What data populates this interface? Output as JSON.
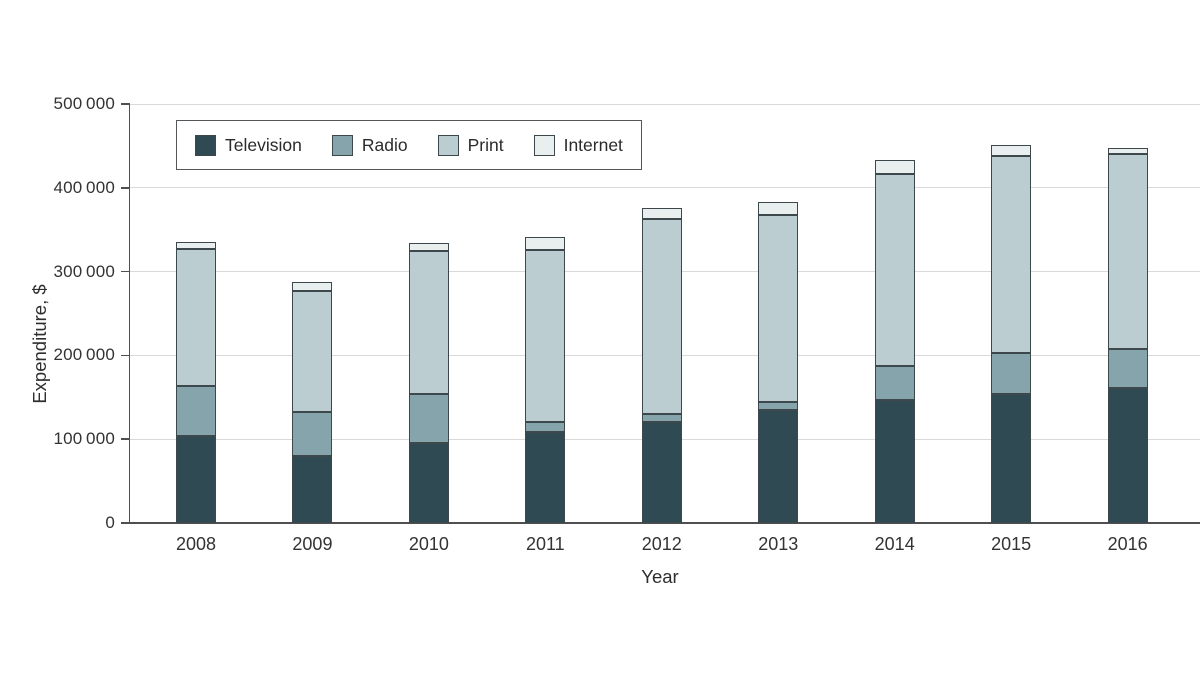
{
  "figure": {
    "background": "#ffffff",
    "text_color": "#333333",
    "axis_color": "#4f4f4f",
    "gridline_color": "#d9d9d9",
    "segment_border_color": "#3d484c",
    "legend_border_color": "#54585a"
  },
  "chart_data": {
    "type": "bar",
    "stacked": true,
    "xlabel": "Year",
    "ylabel": "Expenditure, $",
    "categories": [
      "2008",
      "2009",
      "2010",
      "2011",
      "2012",
      "2013",
      "2014",
      "2015",
      "2016"
    ],
    "series": [
      {
        "name": "Television",
        "color": "#2f4a52",
        "values": [
          104000,
          80000,
          95000,
          109000,
          121000,
          135000,
          147000,
          154000,
          161000
        ]
      },
      {
        "name": "Radio",
        "color": "#85a4ac",
        "values": [
          60000,
          52000,
          59000,
          12000,
          9000,
          9000,
          40000,
          49000,
          47000
        ]
      },
      {
        "name": "Print",
        "color": "#bccdd2",
        "values": [
          163000,
          145000,
          171000,
          205000,
          233000,
          224000,
          229000,
          235000,
          232000
        ]
      },
      {
        "name": "Internet",
        "color": "#e9efef",
        "values": [
          8000,
          10000,
          9000,
          15000,
          13000,
          15000,
          17000,
          13000,
          8000
        ]
      }
    ],
    "totals": [
      335000,
      287000,
      334000,
      341000,
      376000,
      383000,
      433000,
      451000,
      448000
    ],
    "ylim": [
      0,
      500000
    ],
    "ytick_step": 100000,
    "ytick_labels": [
      "0",
      "100 000",
      "200 000",
      "300 000",
      "400 000",
      "500 000"
    ],
    "grid": true,
    "legend_position": "top-left"
  }
}
